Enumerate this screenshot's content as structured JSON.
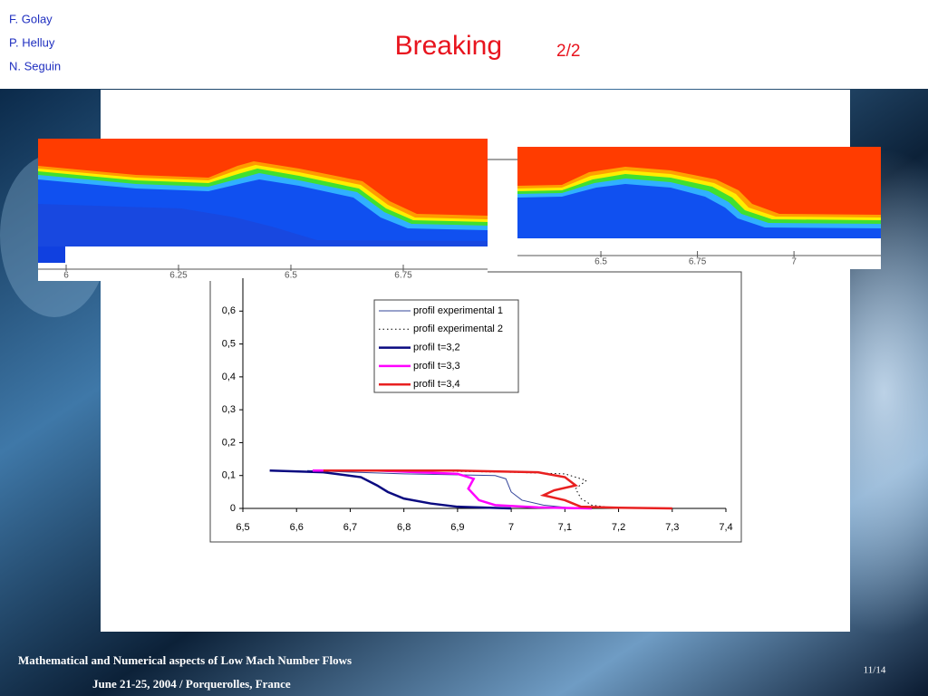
{
  "header": {
    "authors": [
      "F. Golay",
      "P. Helluy",
      "N. Seguin"
    ],
    "title": "Breaking",
    "subtitle": "2/2"
  },
  "images": [
    {
      "xlim": [
        5.9375,
        6.9375
      ],
      "xticks": [
        6,
        6.25,
        6.5,
        6.75
      ]
    },
    {
      "xlim": [
        6.284,
        7.225
      ],
      "xticks": [
        6.5,
        6.75,
        7
      ]
    }
  ],
  "chart_data": {
    "type": "line",
    "xlim": [
      6.5,
      7.4
    ],
    "xticks": [
      {
        "value": 6.5,
        "label": "6,5"
      },
      {
        "value": 6.6,
        "label": "6,6"
      },
      {
        "value": 6.7,
        "label": "6,7"
      },
      {
        "value": 6.8,
        "label": "6,8"
      },
      {
        "value": 6.9,
        "label": "6,9"
      },
      7,
      {
        "value": 7.1,
        "label": "7,1"
      },
      {
        "value": 7.2,
        "label": "7,2"
      },
      {
        "value": 7.3,
        "label": "7,3"
      },
      {
        "value": 7.4,
        "label": "7,4"
      }
    ],
    "ylim": [
      0,
      0.7
    ],
    "yticks": [
      0,
      {
        "value": 0.1,
        "label": "0,1"
      },
      {
        "value": 0.2,
        "label": "0,2"
      },
      {
        "value": 0.3,
        "label": "0,3"
      },
      {
        "value": 0.4,
        "label": "0,4"
      },
      {
        "value": 0.5,
        "label": "0,5"
      },
      {
        "value": 0.6,
        "label": "0,6"
      }
    ],
    "series": [
      {
        "name": "profil experimental 1",
        "color": "#33449a",
        "width": 1,
        "style": "solid",
        "x": [
          6.62,
          6.8,
          6.97,
          6.99,
          7.0,
          7.02,
          7.06,
          7.12
        ],
        "values": [
          0.115,
          0.105,
          0.1,
          0.09,
          0.05,
          0.025,
          0.01,
          0
        ]
      },
      {
        "name": "profil experimental 2",
        "color": "#000000",
        "width": 1,
        "style": "dotted",
        "x": [
          6.8,
          7.0,
          7.1,
          7.14,
          7.12,
          7.13,
          7.15,
          7.2
        ],
        "values": [
          0.115,
          0.11,
          0.105,
          0.085,
          0.06,
          0.03,
          0.01,
          0
        ]
      },
      {
        "name": "profil t=3,2",
        "color": "#0a0a80",
        "width": 2.5,
        "style": "solid",
        "x": [
          6.55,
          6.65,
          6.72,
          6.75,
          6.77,
          6.8,
          6.85,
          6.9,
          7.0
        ],
        "values": [
          0.115,
          0.11,
          0.095,
          0.07,
          0.05,
          0.03,
          0.015,
          0.005,
          0
        ]
      },
      {
        "name": "profil t=3,3",
        "color": "#ff00ff",
        "width": 2.5,
        "style": "solid",
        "x": [
          6.63,
          6.75,
          6.9,
          6.93,
          6.92,
          6.94,
          6.97,
          7.05,
          7.15
        ],
        "values": [
          0.115,
          0.115,
          0.105,
          0.09,
          0.06,
          0.025,
          0.01,
          0.003,
          0
        ]
      },
      {
        "name": "profil t=3,4",
        "color": "#e82020",
        "width": 2.5,
        "style": "solid",
        "x": [
          6.65,
          6.9,
          7.05,
          7.1,
          7.12,
          7.08,
          7.06,
          7.1,
          7.13,
          7.2,
          7.3
        ],
        "values": [
          0.115,
          0.115,
          0.11,
          0.095,
          0.07,
          0.055,
          0.04,
          0.025,
          0.005,
          0.002,
          0
        ]
      }
    ]
  },
  "footer": {
    "conference": "Mathematical and Numerical aspects of Low Mach Number Flows",
    "date_place": "June 21-25, 2004 / Porquerolles, France",
    "page": "11/14"
  }
}
